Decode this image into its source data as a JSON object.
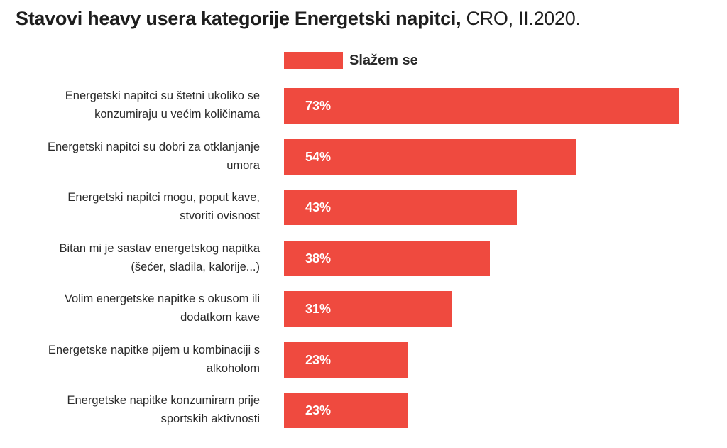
{
  "title": {
    "bold": "Stavovi heavy usera kategorije Energetski napitci,",
    "light": " CRO, II.2020."
  },
  "colors": {
    "bar": "#ef4a3f",
    "text": "#2a2a2a"
  },
  "chart_data": {
    "type": "bar",
    "orientation": "horizontal",
    "title": "Stavovi heavy usera kategorije Energetski napitci, CRO, II.2020.",
    "legend": {
      "position": "top",
      "entries": [
        "Slažem se"
      ]
    },
    "categories": [
      [
        "Energetski napitci su štetni ukoliko se",
        "konzumiraju u većim količinama"
      ],
      [
        "Energetski napitci su dobri za otklanjanje",
        "umora"
      ],
      [
        "Energetski napitci mogu, poput kave,",
        "stvoriti ovisnost"
      ],
      [
        "Bitan mi je sastav energetskog napitka",
        "(šećer, sladila, kalorije...)"
      ],
      [
        "Volim energetske napitke s okusom ili",
        "dodatkom kave"
      ],
      [
        "Energetske napitke pijem u kombinaciji s",
        "alkoholom"
      ],
      [
        "Energetske napitke konzumiram prije",
        "sportskih aktivnosti"
      ]
    ],
    "series": [
      {
        "name": "Slažem se",
        "values": [
          73,
          54,
          43,
          38,
          31,
          23,
          23
        ],
        "labels": [
          "73%",
          "54%",
          "43%",
          "38%",
          "31%",
          "23%",
          "23%"
        ]
      }
    ],
    "xlim": [
      0,
      100
    ],
    "grid": false
  }
}
